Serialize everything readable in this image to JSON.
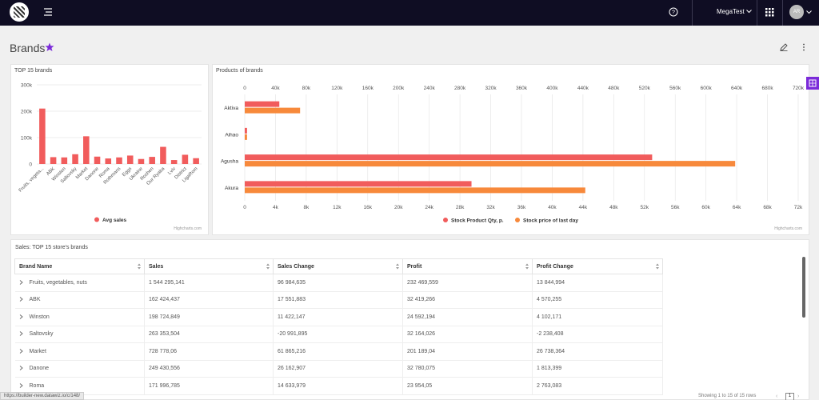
{
  "header": {
    "account_name": "MegaTest",
    "avatar_initials": "AR"
  },
  "page": {
    "title": "Brands"
  },
  "chart_data": [
    {
      "type": "bar",
      "title": "TOP 15 brands",
      "categories": [
        "Fruits, vegeta...",
        "ABK",
        "Winston",
        "Saltovsky",
        "Market",
        "Danone",
        "Roma",
        "Rothmans",
        "Eggs",
        "Ukraine",
        "Roshen",
        "Our Ryaba",
        "Lviv",
        "District",
        "LigaRom"
      ],
      "series": [
        {
          "name": "Avg sales",
          "color": "#f15c5c",
          "values": [
            210000,
            26000,
            25000,
            37000,
            105000,
            28000,
            21000,
            25000,
            32000,
            19000,
            27000,
            65000,
            15000,
            35000,
            22000
          ]
        }
      ],
      "ylim": [
        0,
        300000
      ],
      "yticks": [
        "300k",
        "200k",
        "100k",
        "0"
      ],
      "legend": "bottom",
      "credit": "Highcharts.com"
    },
    {
      "type": "bar",
      "orientation": "horizontal",
      "title": "Products of brands",
      "categories": [
        "Aktiva",
        "Aihao",
        "Agusha",
        "Akura"
      ],
      "series": [
        {
          "name": "Stock Product Qty, p.",
          "color": "#f15c5c",
          "axis": "bottom",
          "values": [
            4500,
            300,
            53000,
            29500
          ]
        },
        {
          "name": "Stock price of last day",
          "color": "#f7893b",
          "axis": "top",
          "values": [
            72000,
            3000,
            638000,
            443000
          ]
        }
      ],
      "top_axis": {
        "ticks": [
          "0",
          "40k",
          "80k",
          "120k",
          "160k",
          "200k",
          "240k",
          "280k",
          "320k",
          "360k",
          "400k",
          "440k",
          "480k",
          "520k",
          "560k",
          "600k",
          "640k",
          "680k",
          "720k"
        ],
        "max": 720000
      },
      "bottom_axis": {
        "ticks": [
          "0",
          "4k",
          "8k",
          "12k",
          "16k",
          "20k",
          "24k",
          "28k",
          "32k",
          "36k",
          "40k",
          "44k",
          "48k",
          "52k",
          "56k",
          "60k",
          "64k",
          "68k",
          "72k"
        ],
        "max": 72000
      },
      "legend": "bottom",
      "credit": "Highcharts.com"
    }
  ],
  "table": {
    "title": "Sales: TOP 15 store's brands",
    "columns": [
      "Brand Name",
      "Sales",
      "Sales Change",
      "Profit",
      "Profit Change"
    ],
    "rows": [
      [
        "Fruits, vegetables, nuts",
        "1 544 295,141",
        "96 984,635",
        "232 469,559",
        "13 844,994"
      ],
      [
        "ABK",
        "162 424,437",
        "17 551,883",
        "32 419,266",
        "4 570,255"
      ],
      [
        "Winston",
        "198 724,849",
        "11 422,147",
        "24 592,194",
        "4 102,171"
      ],
      [
        "Saltovsky",
        "263 353,504",
        "-20 991,895",
        "32 164,026",
        "-2 238,408"
      ],
      [
        "Market",
        "728 778,06",
        "61 865,216",
        "201 189,04",
        "26 738,364"
      ],
      [
        "Danone",
        "249 430,556",
        "26 162,907",
        "32 780,075",
        "1 813,399"
      ],
      [
        "Roma",
        "171 996,785",
        "14 633,979",
        "23 954,05",
        "2 763,083"
      ]
    ]
  },
  "status_url": "https://builder-new.datawiz.io/c/148/",
  "pagination": {
    "showing": "Showing 1 to 15 of 15 rows",
    "page": "1",
    "prev": "‹",
    "next": "›"
  },
  "colors": {
    "topbar": "#0f0d23",
    "accent": "#7b2bd9",
    "bar_red": "#f15c5c",
    "bar_orange": "#f7893b"
  }
}
